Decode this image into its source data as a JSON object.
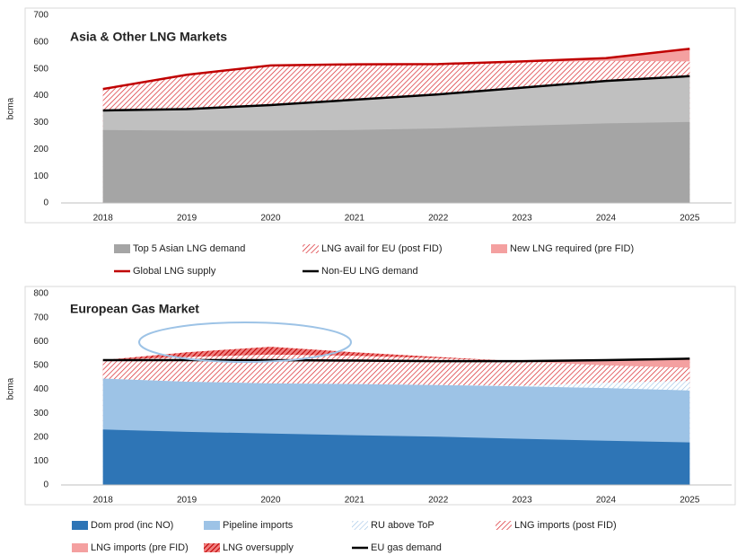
{
  "chart_data": [
    {
      "type": "area",
      "title": "Asia & Other LNG Markets",
      "y_label": "bcma",
      "categories": [
        "2018",
        "2019",
        "2020",
        "2021",
        "2022",
        "2023",
        "2024",
        "2025"
      ],
      "ylim": [
        0,
        700
      ],
      "yticks": [
        0,
        100,
        200,
        300,
        400,
        500,
        600,
        700
      ],
      "series": [
        {
          "name": "New LNG required (pre FID)",
          "kind": "area",
          "color": "#f4a0a0",
          "values": [
            425,
            478,
            513,
            517,
            518,
            528,
            540,
            575
          ]
        },
        {
          "name": "LNG avail for EU (post FID)",
          "kind": "area",
          "color": "#d9262c",
          "hatch": true,
          "values": [
            425,
            478,
            513,
            517,
            518,
            525,
            530,
            528
          ]
        },
        {
          "name": "Non-EU LNG demand",
          "kind": "line",
          "color": "#000000",
          "fill": "#c0c0c0",
          "values": [
            345,
            350,
            365,
            385,
            405,
            430,
            455,
            473
          ]
        },
        {
          "name": "Top 5 Asian LNG demand",
          "kind": "area",
          "color": "#a5a5a5",
          "values": [
            272,
            270,
            270,
            272,
            278,
            288,
            297,
            302
          ]
        },
        {
          "name": "Global LNG supply",
          "kind": "line",
          "color": "#c00000",
          "values": [
            425,
            478,
            513,
            517,
            518,
            528,
            540,
            575
          ]
        }
      ],
      "legend_order": [
        3,
        1,
        0,
        4,
        2
      ]
    },
    {
      "type": "area",
      "title": "European Gas Market",
      "y_label": "bcma",
      "categories": [
        "2018",
        "2019",
        "2020",
        "2021",
        "2022",
        "2023",
        "2024",
        "2025"
      ],
      "ylim": [
        0,
        800
      ],
      "yticks": [
        0,
        100,
        200,
        300,
        400,
        500,
        600,
        700,
        800
      ],
      "series": [
        {
          "name": "LNG oversupply",
          "kind": "area",
          "color": "#c00000",
          "hatch": true,
          "values": [
            522,
            555,
            578,
            555,
            535,
            517,
            522,
            528
          ]
        },
        {
          "name": "LNG imports (pre FID)",
          "kind": "area",
          "color": "#f4a0a0",
          "values": [
            522,
            535,
            545,
            540,
            530,
            517,
            522,
            528
          ]
        },
        {
          "name": "LNG imports (post FID)",
          "kind": "area",
          "color": "#d9262c",
          "hatch": true,
          "values": [
            522,
            535,
            545,
            540,
            530,
            517,
            500,
            490
          ]
        },
        {
          "name": "RU above ToP",
          "kind": "area",
          "color": "#9dc3e6",
          "hatch": true,
          "values": [
            445,
            432,
            425,
            422,
            418,
            415,
            428,
            435
          ]
        },
        {
          "name": "Pipeline imports",
          "kind": "area",
          "color": "#9dc3e6",
          "values": [
            445,
            432,
            425,
            422,
            418,
            412,
            405,
            395
          ]
        },
        {
          "name": "Dom prod (inc NO)",
          "kind": "area",
          "color": "#2e75b6",
          "values": [
            232,
            222,
            215,
            208,
            202,
            193,
            185,
            178
          ]
        },
        {
          "name": "EU gas demand",
          "kind": "line",
          "color": "#000000",
          "values": [
            522,
            522,
            522,
            520,
            518,
            518,
            522,
            528
          ]
        }
      ],
      "legend_order": [
        5,
        4,
        3,
        2,
        1,
        0,
        6
      ]
    }
  ]
}
